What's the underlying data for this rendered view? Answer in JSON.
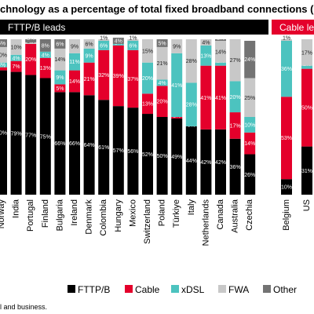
{
  "title": "chnology as a percentage of total fixed broadband connections (e",
  "footnote": "l and business.",
  "chart_data": {
    "type": "bar",
    "stacked": true,
    "groups": [
      {
        "label": "FTTP/B leads",
        "color": "#000000"
      },
      {
        "label": "Cable le",
        "color": "#e4002b"
      }
    ],
    "categories": [
      "Norway",
      "India",
      "Portugal",
      "Finland",
      "Bulgaria",
      "Ireland",
      "Denmark",
      "Colombia",
      "Hungary",
      "Mexico",
      "Switzerland",
      "Poland",
      "Türkiye",
      "Italy",
      "Netherlands",
      "Canada",
      "Australia",
      "Czechia",
      "Belgium",
      "US"
    ],
    "category_labels": [
      "Norway",
      "India",
      "Portugal",
      "Finland",
      "Bulgaria",
      "Ireland",
      "Denmark",
      "Colombia",
      "Hungary",
      "Mexico",
      "Switzerland",
      "Poland",
      "Türkiye",
      "Italy",
      "Netherlands",
      "Canada",
      "Australia",
      "Czechia",
      "Belgium",
      "US"
    ],
    "series": [
      {
        "name": "FTTP/B",
        "color": "#000000",
        "values": [
          80,
          79,
          77,
          75,
          66,
          66,
          64,
          61,
          57,
          56,
          52,
          50,
          49,
          44,
          42,
          42,
          36,
          26,
          10,
          31
        ]
      },
      {
        "name": "Cable",
        "color": "#e4002b",
        "values": [
          2,
          7,
          20,
          13,
          5,
          14,
          21,
          32,
          39,
          37,
          13,
          20,
          1,
          0,
          41,
          41,
          17,
          14,
          53,
          50
        ]
      },
      {
        "name": "xDSL",
        "color": "#4cc3bf",
        "values": [
          3,
          4,
          0,
          4,
          9,
          11,
          9,
          6,
          1,
          6,
          20,
          4,
          41,
          28,
          13,
          2,
          20,
          10,
          36,
          2
        ]
      },
      {
        "name": "FWA",
        "color": "#c8c8c8",
        "values": [
          10,
          10,
          1,
          0,
          14,
          9,
          6,
          1,
          0,
          1,
          15,
          21,
          9,
          28,
          4,
          14,
          27,
          25,
          1,
          17
        ]
      },
      {
        "name": "Other",
        "color": "#737373",
        "values": [
          5,
          0,
          2,
          8,
          6,
          0,
          0,
          0,
          4,
          0,
          0,
          5,
          0,
          0,
          0,
          1,
          0,
          24,
          0,
          0
        ]
      }
    ],
    "value_labels": [
      [
        "80%",
        "2%",
        "3%",
        "10%",
        "5%"
      ],
      [
        "79%",
        "7%",
        "4%",
        "10%",
        ""
      ],
      [
        "77%",
        "20%",
        "",
        "1%",
        "2%"
      ],
      [
        "75%",
        "13%",
        "4%",
        "",
        "8%"
      ],
      [
        "66%",
        "5%",
        "9%",
        "14%",
        "6%"
      ],
      [
        "66%",
        "14%",
        "11%",
        "9%",
        ""
      ],
      [
        "64%",
        "21%",
        "9%",
        "6%",
        ""
      ],
      [
        "61%",
        "32%",
        "6%",
        "1%",
        ""
      ],
      [
        "57%",
        "39%",
        "1%",
        "",
        "4%"
      ],
      [
        "56%",
        "37%",
        "6%",
        "1%",
        ""
      ],
      [
        "52%",
        "13%",
        "20%",
        "15%",
        ""
      ],
      [
        "50%",
        "20%",
        "4%",
        "21%",
        "5%"
      ],
      [
        "49%",
        "1%",
        "41%",
        "9%",
        ""
      ],
      [
        "44%",
        "0%",
        "28%",
        "28%",
        ""
      ],
      [
        "42%",
        "41%",
        "13%",
        "4%",
        ""
      ],
      [
        "42%",
        "41%",
        "2%",
        "14%",
        "1%"
      ],
      [
        "36%",
        "17%",
        "20%",
        "27%",
        ""
      ],
      [
        "26%",
        "14%",
        "10%",
        "25%",
        "24%"
      ],
      [
        "10%",
        "53%",
        "36%",
        "1%",
        ""
      ],
      [
        "31%",
        "50%",
        "2%",
        "17%",
        ""
      ]
    ],
    "ylim": [
      0,
      100
    ],
    "legend_position": "bottom"
  }
}
